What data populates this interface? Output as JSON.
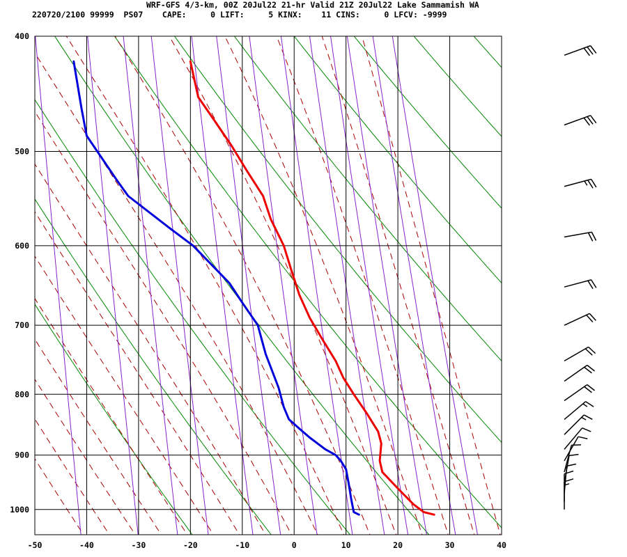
{
  "header": {
    "line1": "WRF-GFS 4/3-km, 00Z 20Jul22 21-hr Valid 21Z 20Jul22 Lake Sammamish WA",
    "line2": "220720/2100 99999  PS07    CAPE:     0 LIFT:     5 KINX:    11 CINS:     0 LFCV: -9999"
  },
  "colors": {
    "temperature": "#ee0000",
    "dewpoint": "#0000dd",
    "isotherm_grid": "#000000",
    "dry_adiabat": "#008800",
    "moist_adiabat": "#aa0000",
    "mixing_ratio": "#8822cc",
    "wind_barb": "#000000"
  },
  "chart_data": {
    "type": "line",
    "title": "",
    "xlabel": "",
    "ylabel": "",
    "xlim": [
      -50,
      40
    ],
    "ylim": [
      1050,
      400
    ],
    "x_ticks": [
      -50,
      -40,
      -30,
      -20,
      -10,
      0,
      10,
      20,
      30,
      40
    ],
    "y_ticks": [
      400,
      500,
      600,
      700,
      800,
      900,
      1000
    ],
    "y_scale": "log",
    "grid": true,
    "legend": "none",
    "series": [
      {
        "role": "temperature",
        "points": [
          [
            27,
            1010
          ],
          [
            25,
            1005
          ],
          [
            23,
            990
          ],
          [
            20,
            960
          ],
          [
            17,
            930
          ],
          [
            16.5,
            910
          ],
          [
            16.8,
            880
          ],
          [
            16.2,
            860
          ],
          [
            14,
            830
          ],
          [
            11.5,
            800
          ],
          [
            9.5,
            775
          ],
          [
            8,
            750
          ],
          [
            5.5,
            720
          ],
          [
            3,
            690
          ],
          [
            1,
            660
          ],
          [
            -0.5,
            630
          ],
          [
            -2,
            600
          ],
          [
            -4.5,
            570
          ],
          [
            -6,
            545
          ],
          [
            -9,
            520
          ],
          [
            -12,
            495
          ],
          [
            -15.5,
            470
          ],
          [
            -18.5,
            450
          ],
          [
            -20,
            420
          ]
        ]
      },
      {
        "role": "dewpoint",
        "points": [
          [
            12.5,
            1010
          ],
          [
            11.5,
            1005
          ],
          [
            11,
            980
          ],
          [
            10.5,
            950
          ],
          [
            10,
            925
          ],
          [
            9,
            910
          ],
          [
            8,
            900
          ],
          [
            6,
            890
          ],
          [
            3,
            870
          ],
          [
            1,
            855
          ],
          [
            -1,
            840
          ],
          [
            -2,
            820
          ],
          [
            -3,
            790
          ],
          [
            -5.5,
            740
          ],
          [
            -7,
            700
          ],
          [
            -10,
            670
          ],
          [
            -12.5,
            645
          ],
          [
            -19.5,
            600
          ],
          [
            -24,
            580
          ],
          [
            -32,
            545
          ],
          [
            -34,
            530
          ],
          [
            -40,
            485
          ],
          [
            -41,
            460
          ],
          [
            -42.5,
            420
          ]
        ]
      }
    ],
    "wind_barbs": [
      {
        "p": 415,
        "dir": 250,
        "spd": 30
      },
      {
        "p": 475,
        "dir": 250,
        "spd": 30
      },
      {
        "p": 535,
        "dir": 255,
        "spd": 25
      },
      {
        "p": 590,
        "dir": 260,
        "spd": 20
      },
      {
        "p": 650,
        "dir": 255,
        "spd": 20
      },
      {
        "p": 700,
        "dir": 245,
        "spd": 20
      },
      {
        "p": 750,
        "dir": 240,
        "spd": 20
      },
      {
        "p": 780,
        "dir": 235,
        "spd": 20
      },
      {
        "p": 810,
        "dir": 235,
        "spd": 20
      },
      {
        "p": 840,
        "dir": 230,
        "spd": 15
      },
      {
        "p": 865,
        "dir": 225,
        "spd": 15
      },
      {
        "p": 890,
        "dir": 220,
        "spd": 10
      },
      {
        "p": 910,
        "dir": 210,
        "spd": 10
      },
      {
        "p": 930,
        "dir": 195,
        "spd": 10
      },
      {
        "p": 950,
        "dir": 190,
        "spd": 10
      },
      {
        "p": 970,
        "dir": 185,
        "spd": 10
      },
      {
        "p": 985,
        "dir": 180,
        "spd": 10
      },
      {
        "p": 1000,
        "dir": 180,
        "spd": 15
      }
    ]
  }
}
